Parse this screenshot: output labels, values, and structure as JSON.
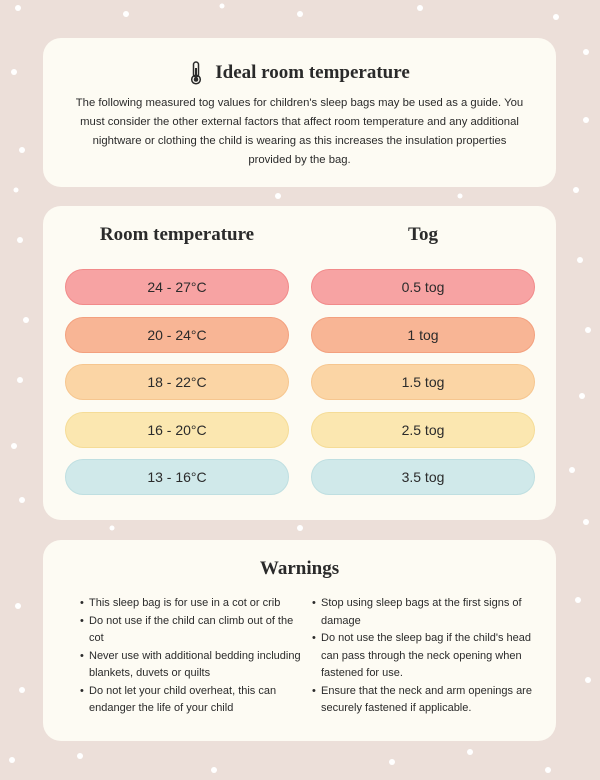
{
  "header": {
    "title": "Ideal room temperature",
    "text": "The following measured tog values for children's sleep bags may be used as a guide. You must consider the other external factors that affect room temperature and any  additional nightware or clothing the child is wearing as this increases the insulation  properties provided by the bag."
  },
  "table": {
    "headers": [
      "Room temperature",
      "Tog"
    ],
    "rows": [
      [
        "24 - 27°C",
        "0.5 tog"
      ],
      [
        "20 - 24°C",
        "1 tog"
      ],
      [
        "18 - 22°C",
        "1.5 tog"
      ],
      [
        "16 - 20°C",
        "2.5 tog"
      ],
      [
        "13 - 16°C",
        "3.5 tog"
      ]
    ]
  },
  "warnings": {
    "title": "Warnings",
    "left": [
      "This sleep bag is for use in a cot or crib",
      "Do not use if the child can climb out of the cot",
      "Never use with additional bedding including blankets, duvets or quilts",
      "Do not let your child overheat, this can endanger the life of your child"
    ],
    "right": [
      "Stop using sleep bags at the first signs of damage",
      "Do not use the sleep bag if the child's head can pass through the neck opening when fastened for use.",
      "Ensure that the neck and arm openings are securely fastened if applicable."
    ]
  }
}
